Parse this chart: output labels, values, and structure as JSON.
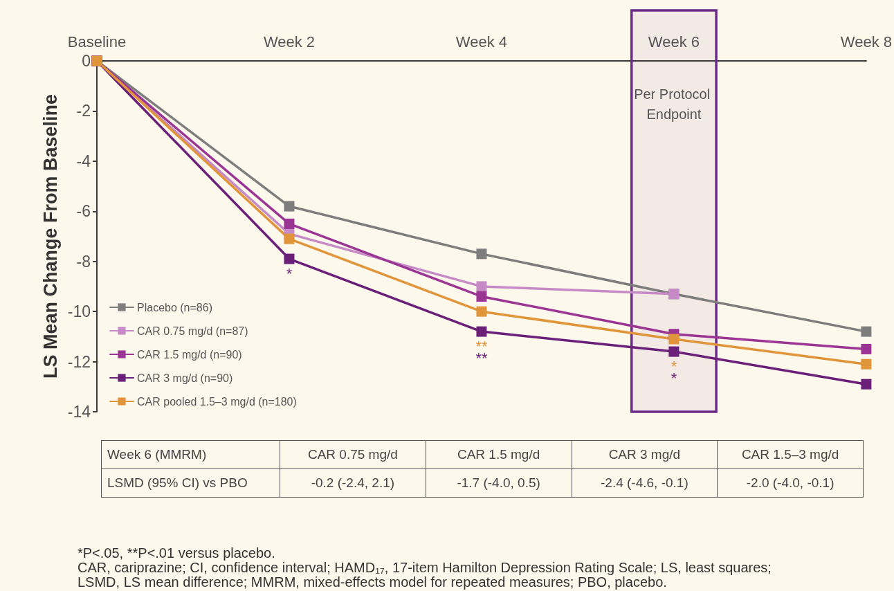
{
  "chart_data": [
    {
      "type": "line",
      "categories": [
        "Baseline",
        "Week 2",
        "Week 4",
        "Week 6",
        "Week 8"
      ],
      "series": [
        {
          "name": "Placebo (n=86)",
          "color": "#7d7d7d",
          "values": [
            0,
            -5.8,
            -7.7,
            -9.3,
            -10.8
          ]
        },
        {
          "name": "CAR 0.75 mg/d (n=87)",
          "color": "#c68ac6",
          "values": [
            0,
            -6.9,
            -9.0,
            -9.3,
            null
          ]
        },
        {
          "name": "CAR 1.5 mg/d (n=90)",
          "color": "#9b3594",
          "values": [
            0,
            -6.5,
            -9.4,
            -10.9,
            -11.5
          ]
        },
        {
          "name": "CAR 3 mg/d (n=90)",
          "color": "#6a1f78",
          "values": [
            0,
            -7.9,
            -10.8,
            -11.6,
            -12.9
          ],
          "value_labels": [
            null,
            "*",
            "**",
            "*",
            null
          ]
        },
        {
          "name": "CAR pooled 1.5–3 mg/d (n=180)",
          "color": "#e0953a",
          "values": [
            0,
            -7.1,
            -10.0,
            -11.1,
            -12.1
          ],
          "value_labels": [
            null,
            null,
            "**",
            "*",
            null
          ]
        }
      ],
      "ylabel": "LS Mean Change From Baseline",
      "ylim": [
        -14,
        0
      ],
      "yticks": [
        -14,
        -12,
        -10,
        -8,
        -6,
        -4,
        -2,
        0
      ],
      "legend": "bottom left",
      "marker": "square",
      "line_style": "solid",
      "bands": [
        {
          "axis": "x",
          "from": "Week 6",
          "to": "Week 6",
          "label": "Per Protocol Endpoint",
          "color": "#6b2a8a"
        }
      ],
      "annotations": [
        "*P<.05, **P<.01 versus placebo.",
        "CAR, cariprazine; CI, confidence interval; HAMD₁₇, 17-item Hamilton Depression Rating Scale; LS, least squares; LSMD, LS mean difference; MMRM, mixed-effects model for repeated measures; PBO, placebo."
      ]
    },
    {
      "type": "other",
      "annotations": [
        "Week 6 (MMRM)",
        "CAR 0.75 mg/d",
        "CAR 1.5 mg/d",
        "CAR 3 mg/d",
        "CAR 1.5–3 mg/d",
        "LSMD (95% CI) vs PBO",
        "-0.2 (-2.4, 2.1)",
        "-1.7 (-4.0, 0.5)",
        "-2.4 (-4.6, -0.1)",
        "-2.0 (-4.0, -0.1)"
      ]
    }
  ]
}
